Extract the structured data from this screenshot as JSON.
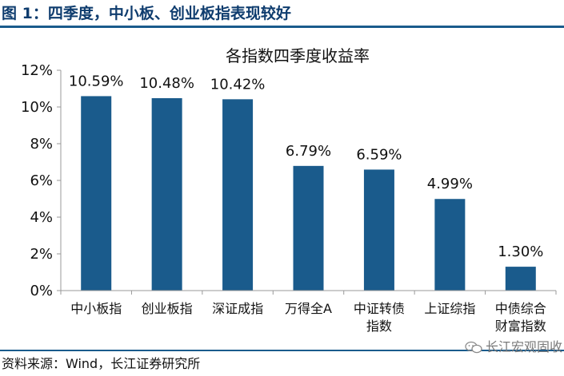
{
  "figure": {
    "title": "图 1：四季度，中小板、创业板指表现较好",
    "source": "资料来源：Wind，长江证券研究所",
    "watermark": "长江宏观固收",
    "watermark_icon": "wechat-icon"
  },
  "colors": {
    "bar": "#1a5b8c",
    "title_text": "#0e3c6e",
    "rule": "#1a5b8c",
    "axis": "#999999"
  },
  "chart_data": {
    "type": "bar",
    "title": "各指数四季度收益率",
    "categories": [
      "中小板指",
      "创业板指",
      "深证成指",
      "万得全A",
      "中证转债指数",
      "上证综指",
      "中债综合财富指数"
    ],
    "category_label_lines": [
      [
        "中小板指"
      ],
      [
        "创业板指"
      ],
      [
        "深证成指"
      ],
      [
        "万得全A"
      ],
      [
        "中证转债",
        "指数"
      ],
      [
        "上证综指"
      ],
      [
        "中债综合",
        "财富指数"
      ]
    ],
    "values": [
      10.59,
      10.48,
      10.42,
      6.79,
      6.59,
      4.99,
      1.3
    ],
    "data_labels": [
      "10.59%",
      "10.48%",
      "10.42%",
      "6.79%",
      "6.59%",
      "4.99%",
      "1.30%"
    ],
    "ylim": [
      0,
      12
    ],
    "yticks": [
      0,
      2,
      4,
      6,
      8,
      10,
      12
    ],
    "ytick_labels": [
      "0%",
      "2%",
      "4%",
      "6%",
      "8%",
      "10%",
      "12%"
    ],
    "grid": false,
    "legend": "none"
  }
}
